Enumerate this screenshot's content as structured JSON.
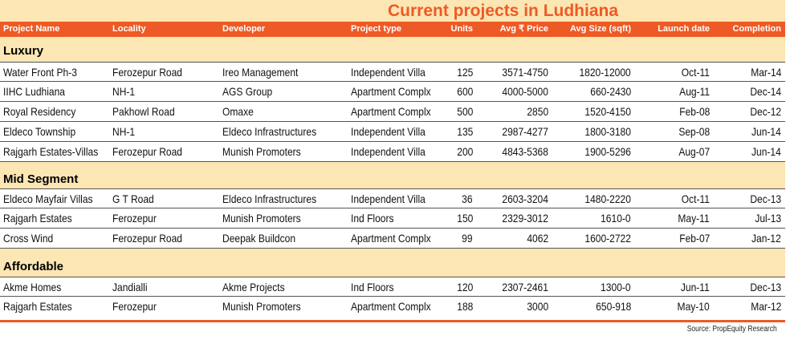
{
  "title": "Current projects in Ludhiana",
  "headers": {
    "project_name": "Project Name",
    "locality": "Locality",
    "developer": "Developer",
    "project_type": "Project type",
    "units": "Units",
    "avg_price": "Avg ₹ Price",
    "avg_size": "Avg Size (sqft)",
    "launch_date": "Launch date",
    "completion": "Completion"
  },
  "sections": [
    {
      "label": "Luxury",
      "rows": [
        {
          "project": "Water Front Ph-3",
          "locality": "Ferozepur Road",
          "developer": "Ireo Management",
          "type": "Independent Villa",
          "units": "125",
          "price": "3571-4750",
          "size": "1820-12000",
          "launch": "Oct-11",
          "completion": "Mar-14"
        },
        {
          "project": "IIHC Ludhiana",
          "locality": "NH-1",
          "developer": "AGS Group",
          "type": "Apartment Complx",
          "units": "600",
          "price": "4000-5000",
          "size": "660-2430",
          "launch": "Aug-11",
          "completion": "Dec-14"
        },
        {
          "project": "Royal Residency",
          "locality": "Pakhowl Road",
          "developer": "Omaxe",
          "type": "Apartment Complx",
          "units": "500",
          "price": "2850",
          "size": "1520-4150",
          "launch": "Feb-08",
          "completion": "Dec-12"
        },
        {
          "project": "Eldeco Township",
          "locality": "NH-1",
          "developer": "Eldeco Infrastructures",
          "type": "Independent Villa",
          "units": "135",
          "price": "2987-4277",
          "size": "1800-3180",
          "launch": "Sep-08",
          "completion": "Jun-14"
        },
        {
          "project": "Rajgarh Estates-Villas",
          "locality": "Ferozepur Road",
          "developer": "Munish Promoters",
          "type": "Independent Villa",
          "units": "200",
          "price": "4843-5368",
          "size": "1900-5296",
          "launch": "Aug-07",
          "completion": "Jun-14"
        }
      ]
    },
    {
      "label": "Mid Segment",
      "rows": [
        {
          "project": "Eldeco Mayfair Villas",
          "locality": "G T Road",
          "developer": "Eldeco Infrastructures",
          "type": "Independent Villa",
          "units": "36",
          "price": "2603-3204",
          "size": "1480-2220",
          "launch": "Oct-11",
          "completion": "Dec-13"
        },
        {
          "project": "Rajgarh Estates",
          "locality": "Ferozepur",
          "developer": "Munish Promoters",
          "type": "Ind Floors",
          "units": "150",
          "price": "2329-3012",
          "size": "1610-0",
          "launch": "May-11",
          "completion": "Jul-13"
        },
        {
          "project": "Cross Wind",
          "locality": "Ferozepur Road",
          "developer": "Deepak Buildcon",
          "type": "Apartment Complx",
          "units": "99",
          "price": "4062",
          "size": "1600-2722",
          "launch": "Feb-07",
          "completion": "Jan-12"
        }
      ]
    },
    {
      "label": "Affordable",
      "rows": [
        {
          "project": "Akme Homes",
          "locality": "Jandialli",
          "developer": "Akme Projects",
          "type": "Ind Floors",
          "units": "120",
          "price": "2307-2461",
          "size": "1300-0",
          "launch": "Jun-11",
          "completion": "Dec-13"
        },
        {
          "project": "Rajgarh Estates",
          "locality": "Ferozepur",
          "developer": "Munish Promoters",
          "type": "Apartment Complx",
          "units": "188",
          "price": "3000",
          "size": "650-918",
          "launch": "May-10",
          "completion": "Mar-12"
        }
      ]
    }
  ],
  "source": "Source: PropEquity Research",
  "colors": {
    "accent": "#ee5a25",
    "band": "#fbe6b4"
  }
}
